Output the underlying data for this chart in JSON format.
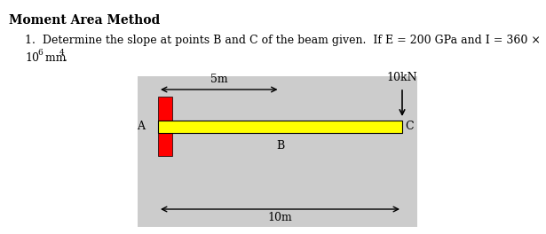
{
  "title": "Moment Area Method",
  "line1": "1.  Determine the slope at points B and C of the beam given.  If E = 200 GPa and I = 360 ×",
  "line2_prefix": "10",
  "line2_exp": "6",
  "line2_unit": " mm",
  "line2_exp2": "4",
  "line2_dot": ".",
  "label_A": "A",
  "label_B": "B",
  "label_C": "C",
  "label_5m": "5m",
  "label_10m": "10m",
  "label_10kN": "10kN",
  "panel_bg": "#cccccc",
  "beam_color": "#ffff00",
  "wall_color": "#ff0000",
  "title_fontsize": 10,
  "body_fontsize": 9,
  "diagram_fontsize": 9
}
